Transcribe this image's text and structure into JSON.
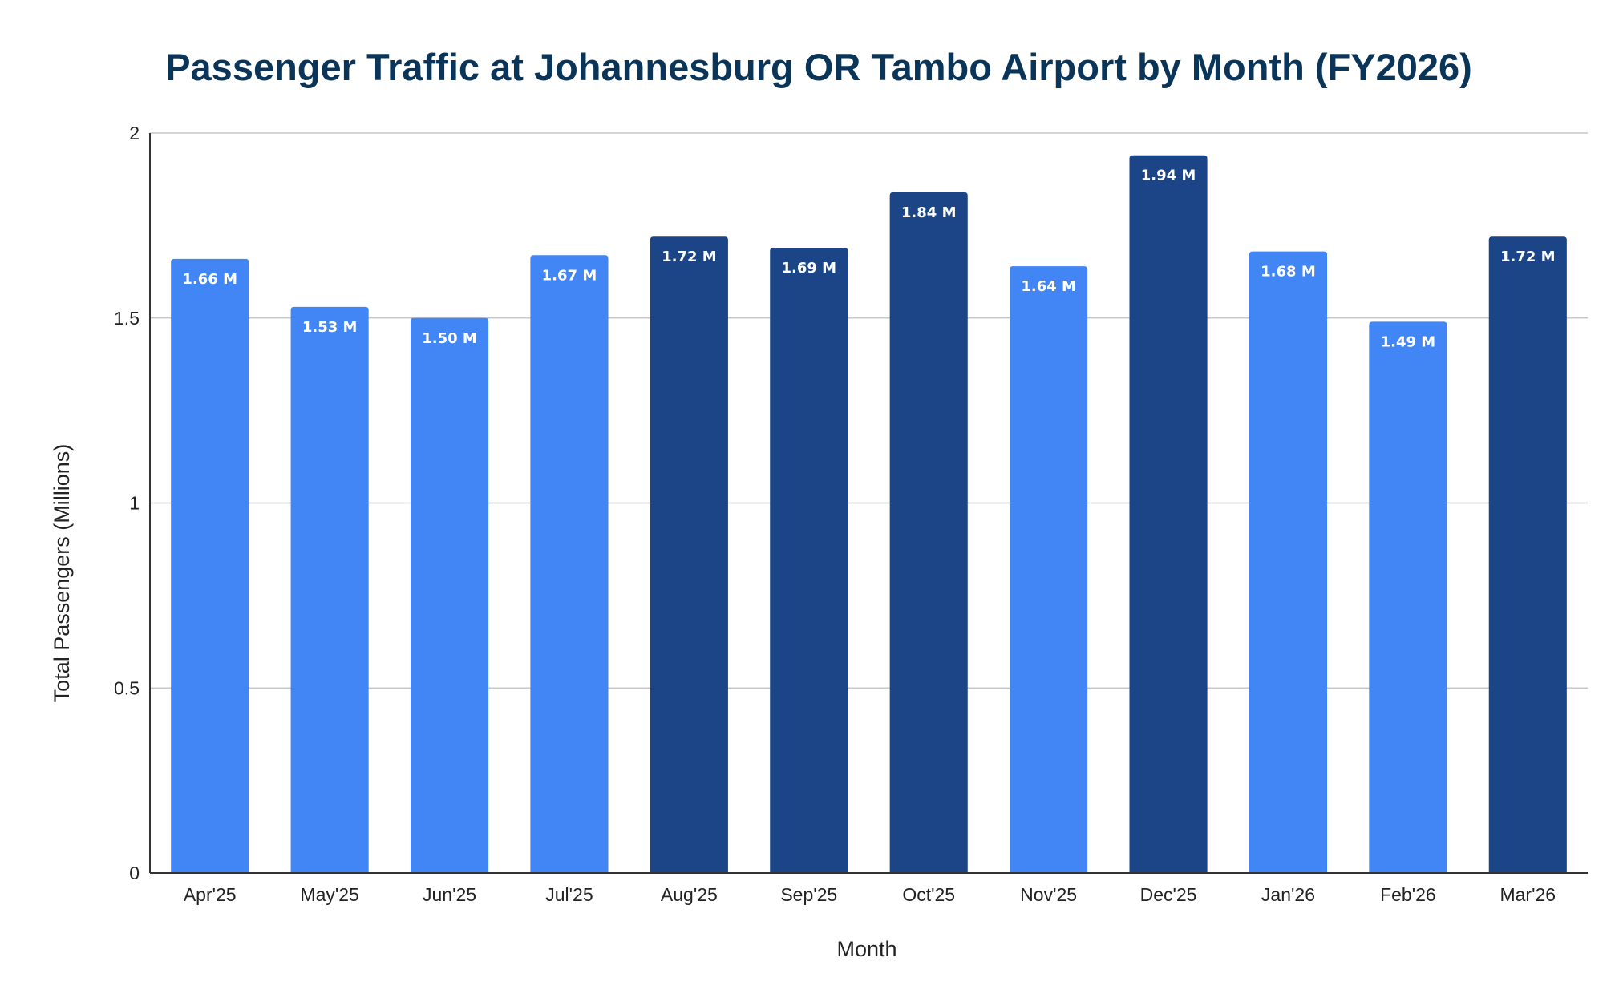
{
  "chart_data": {
    "type": "bar",
    "title": "Passenger Traffic at Johannesburg OR Tambo Airport by Month (FY2026)",
    "xlabel": "Month",
    "ylabel": "Total Passengers (Millions)",
    "ylim": [
      0,
      2
    ],
    "yticks": [
      {
        "value": 0,
        "label": "0"
      },
      {
        "value": 0.5,
        "label": "0.5"
      },
      {
        "value": 1,
        "label": "1"
      },
      {
        "value": 1.5,
        "label": "1.5"
      },
      {
        "value": 2,
        "label": "2"
      }
    ],
    "grid": true,
    "legend": "none",
    "categories": [
      "Apr'25",
      "May'25",
      "Jun'25",
      "Jul'25",
      "Aug'25",
      "Sep'25",
      "Oct'25",
      "Nov'25",
      "Dec'25",
      "Jan'26",
      "Feb'26",
      "Mar'26"
    ],
    "values": [
      1.66,
      1.53,
      1.5,
      1.67,
      1.72,
      1.69,
      1.84,
      1.64,
      1.94,
      1.68,
      1.49,
      1.72
    ],
    "data_labels": [
      "1.66 M",
      "1.53 M",
      "1.50 M",
      "1.67 M",
      "1.72 M",
      "1.69 M",
      "1.84 M",
      "1.64 M",
      "1.94 M",
      "1.68 M",
      "1.49 M",
      "1.72 M"
    ],
    "bar_colors": [
      "#4285f4",
      "#4285f4",
      "#4285f4",
      "#4285f4",
      "#1c4587",
      "#1c4587",
      "#1c4587",
      "#4285f4",
      "#1c4587",
      "#4285f4",
      "#4285f4",
      "#1c4587"
    ]
  }
}
